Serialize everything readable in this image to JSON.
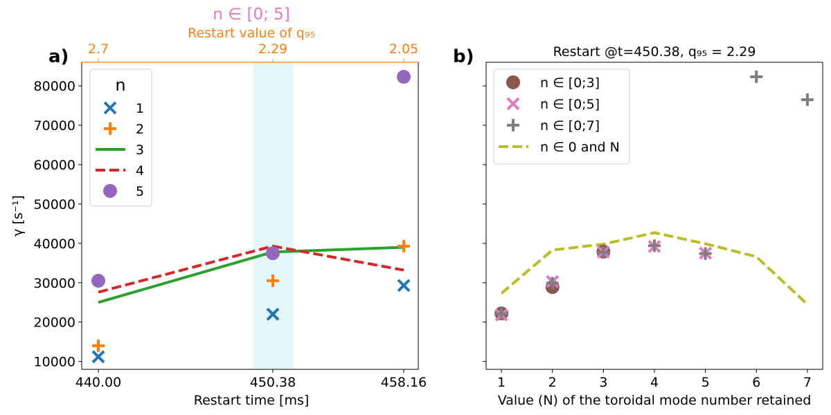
{
  "colors": {
    "n1": "#1f77b4",
    "n2": "#ff7f0e",
    "n3": "#2ca02c",
    "n4": "#d62728",
    "n5": "#9467bd",
    "brown": "#8c564b",
    "pink": "#e377c2",
    "gray": "#7f7f7f",
    "olive": "#bcbd22",
    "highlight": "#e3f6fa",
    "top_axis": "#ff7f0e",
    "top_title": "#e377c2"
  },
  "chart_data": [
    {
      "type": "line",
      "panel_label": "a)",
      "top_title": "n ∈ [0; 5]",
      "top_xlabel": "Restart value of q₉₅",
      "xlabel": "Restart time [ms]",
      "ylabel": "γ [s⁻¹]",
      "x": [
        440.0,
        450.38,
        458.16
      ],
      "x_tick_labels": [
        "440.00",
        "450.38",
        "458.16"
      ],
      "top_tick_labels": [
        "2.7",
        "2.29",
        "2.05"
      ],
      "ylim": [
        8000,
        86000
      ],
      "yticks": [
        10000,
        20000,
        30000,
        40000,
        50000,
        60000,
        70000,
        80000
      ],
      "ytick_labels": [
        "10000",
        "20000",
        "30000",
        "40000",
        "50000",
        "60000",
        "70000",
        "80000"
      ],
      "highlight_x": [
        449.2,
        451.6
      ],
      "legend_title": "n",
      "legend_position": "top-left",
      "series": [
        {
          "name": "1",
          "style": "x-marker",
          "values": [
            11200,
            22000,
            29300
          ]
        },
        {
          "name": "2",
          "style": "plus-marker",
          "values": [
            14000,
            30500,
            39300
          ]
        },
        {
          "name": "3",
          "style": "solid-line",
          "values": [
            25000,
            37800,
            39000
          ]
        },
        {
          "name": "4",
          "style": "dashed-line",
          "values": [
            27600,
            39300,
            33200
          ]
        },
        {
          "name": "5",
          "style": "circle-marker",
          "values": [
            30500,
            37500,
            82300
          ]
        }
      ]
    },
    {
      "type": "scatter",
      "panel_label": "b)",
      "title": "Restart @t=450.38, q₉₅ = 2.29",
      "xlabel": "Value (N) of the toroidal mode number retained",
      "xlim": [
        0.7,
        7.3
      ],
      "xticks": [
        1,
        2,
        3,
        4,
        5,
        6,
        7
      ],
      "x_tick_labels": [
        "1",
        "2",
        "3",
        "4",
        "5",
        "6",
        "7"
      ],
      "ylim": [
        8000,
        86000
      ],
      "legend_position": "top-left",
      "series": [
        {
          "name": "n ∈ [0;3]",
          "style": "circle-marker",
          "x": [
            1,
            2,
            3
          ],
          "values": [
            22200,
            28900,
            37900
          ]
        },
        {
          "name": "n ∈ [0;5]",
          "style": "x-marker",
          "x": [
            1,
            2,
            3,
            4,
            5
          ],
          "values": [
            21800,
            30300,
            37800,
            39200,
            37500
          ]
        },
        {
          "name": "n ∈ [0;7]",
          "style": "plus-marker",
          "x": [
            1,
            2,
            3,
            4,
            5,
            6,
            7
          ],
          "values": [
            22100,
            29900,
            37700,
            39400,
            37400,
            82300,
            76500
          ]
        },
        {
          "name": "n ∈ 0 and N",
          "style": "dashed-line",
          "x": [
            1,
            2,
            3,
            4,
            5,
            6,
            7
          ],
          "values": [
            27300,
            38300,
            39800,
            42700,
            39900,
            36600,
            24500
          ]
        }
      ]
    }
  ]
}
